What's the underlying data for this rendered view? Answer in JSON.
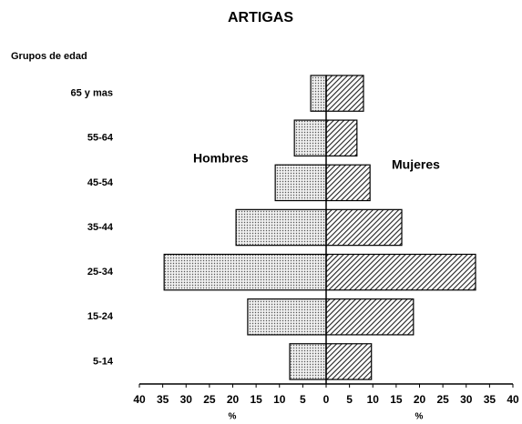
{
  "chart_data": {
    "type": "pyramid",
    "title": "ARTIGAS",
    "ylabel": "Grupos de edad",
    "xlabel_left": "%",
    "xlabel_right": "%",
    "categories": [
      "65 y mas",
      "55-64",
      "45-54",
      "35-44",
      "25-34",
      "15-24",
      "5-14"
    ],
    "series": [
      {
        "name": "Hombres",
        "color": "#d8d8d8",
        "side": "left",
        "values": [
          3.3,
          6.8,
          10.9,
          19.3,
          34.7,
          16.8,
          7.8
        ]
      },
      {
        "name": "Mujeres",
        "color": "#555555",
        "side": "right",
        "values": [
          8.0,
          6.6,
          9.4,
          16.2,
          32,
          18.7,
          9.7
        ]
      }
    ],
    "xlim": [
      -40,
      40
    ],
    "xticks": [
      {
        "value": -40,
        "label": "40"
      },
      {
        "value": -35,
        "label": "35"
      },
      {
        "value": -30,
        "label": "30"
      },
      {
        "value": -25,
        "label": "25"
      },
      {
        "value": -20,
        "label": "20"
      },
      {
        "value": -15,
        "label": "15"
      },
      {
        "value": -10,
        "label": "10"
      },
      {
        "value": -5,
        "label": "5"
      },
      0,
      5,
      10,
      15,
      20,
      25,
      30,
      35,
      40
    ]
  }
}
